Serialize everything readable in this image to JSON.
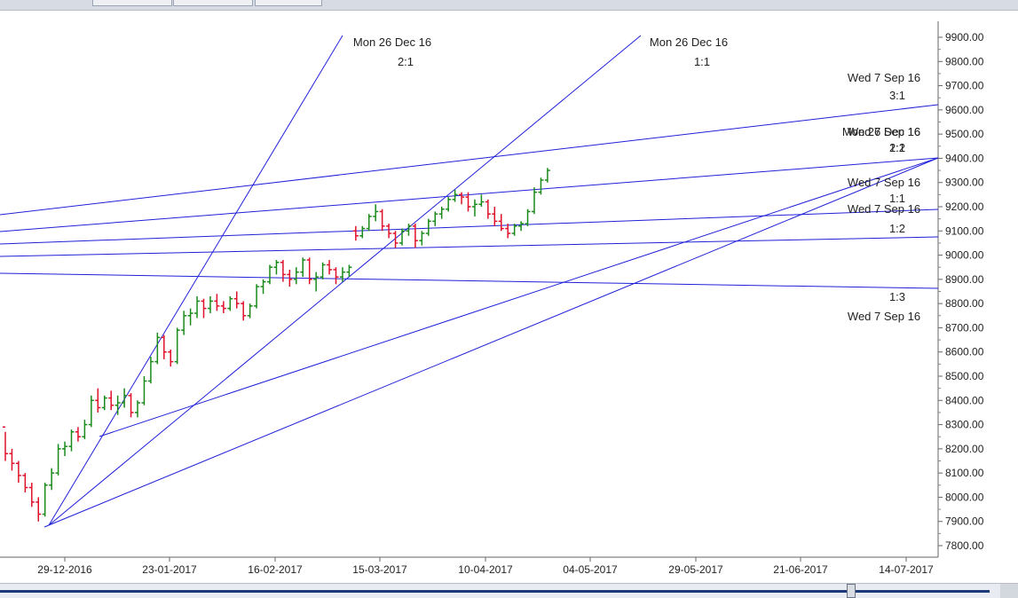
{
  "toolbar": {
    "buttons": [
      "",
      "",
      ""
    ]
  },
  "chart_data": {
    "type": "ohlc",
    "colors": {
      "up": "#1a8a1a",
      "down": "#e0102a",
      "fan": "#2020d8",
      "axis": "#444444",
      "text": "#222222"
    },
    "yticks": [
      "9900.00",
      "9800.00",
      "9700.00",
      "9600.00",
      "9500.00",
      "9400.00",
      "9300.00",
      "9200.00",
      "9100.00",
      "9000.00",
      "8900.00",
      "8800.00",
      "8700.00",
      "8600.00",
      "8500.00",
      "8400.00",
      "8300.00",
      "8200.00",
      "8100.00",
      "8000.00",
      "7900.00",
      "7800.00"
    ],
    "ylim": [
      7800,
      9900
    ],
    "xticks": [
      "29-12-2016",
      "23-01-2017",
      "16-02-2017",
      "15-03-2017",
      "10-04-2017",
      "04-05-2017",
      "29-05-2017",
      "21-06-2017",
      "14-07-2017"
    ],
    "gann_fan_labels": [
      {
        "date": "Mon 26 Dec 16",
        "ratio": "2:1"
      },
      {
        "date": "Mon 26 Dec 16",
        "ratio": "1:1"
      },
      {
        "date": "Wed 7 Sep 16",
        "ratio": "3:1"
      },
      {
        "date": "Mon 26 Dec 16",
        "ratio": "1:2"
      },
      {
        "date": "Wed 7 Sep 16",
        "ratio": "2:1"
      },
      {
        "date": "Wed 7 Sep 16",
        "ratio": "1:1"
      },
      {
        "date": "Wed 7 Sep 16",
        "ratio": "1:2"
      },
      {
        "date": "Wed 7 Sep 16",
        "ratio": "1:3"
      }
    ],
    "ohlc": [
      [
        8290,
        8270,
        8150,
        8180
      ],
      [
        8180,
        8200,
        8110,
        8140
      ],
      [
        8140,
        8150,
        8060,
        8090
      ],
      [
        8090,
        8100,
        8020,
        8040
      ],
      [
        8040,
        8060,
        7960,
        7980
      ],
      [
        7980,
        8000,
        7900,
        7930
      ],
      [
        7930,
        8060,
        7920,
        8050
      ],
      [
        8050,
        8120,
        8030,
        8100
      ],
      [
        8100,
        8220,
        8090,
        8200
      ],
      [
        8200,
        8230,
        8170,
        8210
      ],
      [
        8210,
        8280,
        8190,
        8270
      ],
      [
        8270,
        8290,
        8230,
        8250
      ],
      [
        8250,
        8320,
        8240,
        8300
      ],
      [
        8300,
        8420,
        8290,
        8400
      ],
      [
        8400,
        8450,
        8350,
        8370
      ],
      [
        8370,
        8420,
        8360,
        8410
      ],
      [
        8410,
        8440,
        8360,
        8380
      ],
      [
        8380,
        8420,
        8340,
        8390
      ],
      [
        8390,
        8450,
        8370,
        8420
      ],
      [
        8420,
        8430,
        8330,
        8350
      ],
      [
        8350,
        8400,
        8330,
        8390
      ],
      [
        8390,
        8500,
        8380,
        8480
      ],
      [
        8480,
        8580,
        8470,
        8560
      ],
      [
        8560,
        8680,
        8550,
        8660
      ],
      [
        8660,
        8670,
        8570,
        8600
      ],
      [
        8600,
        8610,
        8540,
        8560
      ],
      [
        8560,
        8700,
        8550,
        8690
      ],
      [
        8690,
        8770,
        8670,
        8750
      ],
      [
        8750,
        8780,
        8710,
        8760
      ],
      [
        8760,
        8830,
        8740,
        8810
      ],
      [
        8810,
        8820,
        8740,
        8780
      ],
      [
        8780,
        8830,
        8760,
        8810
      ],
      [
        8810,
        8840,
        8770,
        8790
      ],
      [
        8790,
        8810,
        8760,
        8780
      ],
      [
        8780,
        8830,
        8770,
        8820
      ],
      [
        8820,
        8850,
        8780,
        8800
      ],
      [
        8800,
        8810,
        8730,
        8750
      ],
      [
        8750,
        8800,
        8740,
        8790
      ],
      [
        8790,
        8880,
        8780,
        8870
      ],
      [
        8870,
        8900,
        8840,
        8890
      ],
      [
        8890,
        8960,
        8880,
        8950
      ],
      [
        8950,
        8980,
        8920,
        8970
      ],
      [
        8970,
        8980,
        8890,
        8920
      ],
      [
        8920,
        8940,
        8870,
        8900
      ],
      [
        8900,
        8950,
        8880,
        8930
      ],
      [
        8930,
        8990,
        8910,
        8980
      ],
      [
        8980,
        8990,
        8880,
        8900
      ],
      [
        8900,
        8930,
        8850,
        8910
      ],
      [
        8910,
        8970,
        8900,
        8960
      ],
      [
        8960,
        8980,
        8920,
        8940
      ],
      [
        8940,
        8950,
        8880,
        8910
      ],
      [
        8910,
        8950,
        8890,
        8930
      ],
      [
        8930,
        8960,
        8910,
        8950
      ],
      [
        9100,
        9120,
        9060,
        9080
      ],
      [
        9080,
        9120,
        9070,
        9110
      ],
      [
        9110,
        9170,
        9100,
        9160
      ],
      [
        9160,
        9210,
        9140,
        9180
      ],
      [
        9180,
        9190,
        9100,
        9120
      ],
      [
        9120,
        9130,
        9070,
        9090
      ],
      [
        9090,
        9100,
        9030,
        9050
      ],
      [
        9050,
        9110,
        9040,
        9100
      ],
      [
        9100,
        9130,
        9080,
        9120
      ],
      [
        9120,
        9130,
        9030,
        9060
      ],
      [
        9060,
        9100,
        9040,
        9090
      ],
      [
        9090,
        9150,
        9080,
        9140
      ],
      [
        9140,
        9180,
        9120,
        9170
      ],
      [
        9170,
        9200,
        9150,
        9190
      ],
      [
        9190,
        9240,
        9180,
        9230
      ],
      [
        9230,
        9270,
        9220,
        9250
      ],
      [
        9250,
        9260,
        9210,
        9240
      ],
      [
        9240,
        9260,
        9180,
        9200
      ],
      [
        9200,
        9230,
        9160,
        9210
      ],
      [
        9210,
        9250,
        9200,
        9220
      ],
      [
        9220,
        9230,
        9150,
        9170
      ],
      [
        9170,
        9200,
        9120,
        9140
      ],
      [
        9140,
        9170,
        9100,
        9110
      ],
      [
        9110,
        9130,
        9070,
        9090
      ],
      [
        9090,
        9130,
        9080,
        9120
      ],
      [
        9120,
        9140,
        9100,
        9130
      ],
      [
        9130,
        9190,
        9120,
        9180
      ],
      [
        9180,
        9280,
        9170,
        9260
      ],
      [
        9260,
        9320,
        9250,
        9310
      ],
      [
        9310,
        9360,
        9300,
        9350
      ]
    ]
  }
}
